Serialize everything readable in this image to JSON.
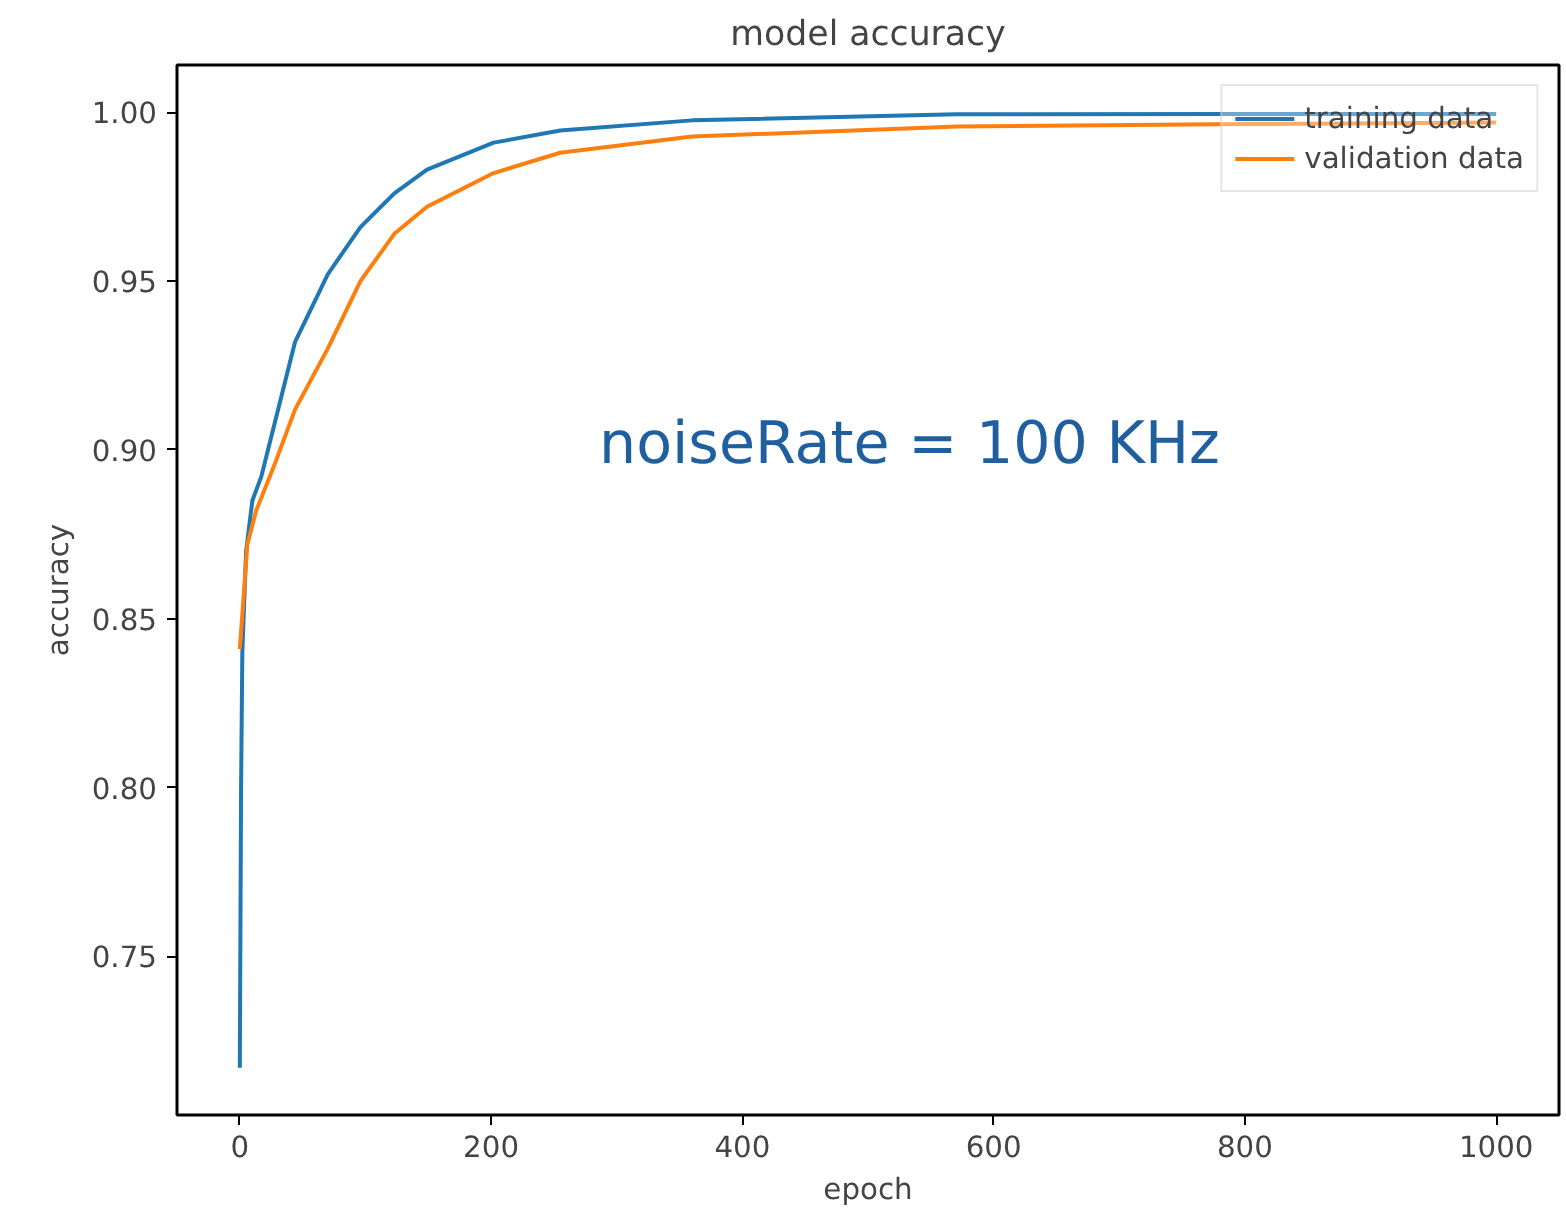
{
  "chart_data": {
    "type": "line",
    "title": "model accuracy",
    "xlabel": "epoch",
    "ylabel": "accuracy",
    "xlim": [
      -50,
      1050
    ],
    "ylim": [
      0.703,
      1.014
    ],
    "xticks": [
      0,
      200,
      400,
      600,
      800,
      1000
    ],
    "yticks": [
      {
        "value": 0.75,
        "label": "0.75"
      },
      {
        "value": 0.8,
        "label": "0.80"
      },
      {
        "value": 0.85,
        "label": "0.85"
      },
      {
        "value": 0.9,
        "label": "0.90"
      },
      {
        "value": 0.95,
        "label": "0.95"
      },
      {
        "value": 1.0,
        "label": "1.00"
      }
    ],
    "grid": false,
    "legend": "top right",
    "annotations": [
      "noiseRate = 100 KHz"
    ],
    "series": [
      {
        "name": "training data",
        "color": "#1f77b4",
        "x": [
          0,
          1,
          2,
          5,
          10,
          17,
          44,
          70,
          96,
          123,
          149,
          202,
          255,
          360,
          571,
          800,
          1000
        ],
        "values": [
          0.717,
          0.8,
          0.84,
          0.87,
          0.885,
          0.892,
          0.932,
          0.952,
          0.966,
          0.976,
          0.983,
          0.991,
          0.9946,
          0.9976,
          0.9994,
          0.9995,
          0.9995
        ]
      },
      {
        "name": "validation data",
        "color": "#ff7f0e",
        "x": [
          0,
          6,
          13,
          28,
          44,
          70,
          96,
          123,
          149,
          202,
          255,
          360,
          571,
          800,
          1000
        ],
        "values": [
          0.841,
          0.872,
          0.882,
          0.896,
          0.912,
          0.93,
          0.95,
          0.964,
          0.972,
          0.982,
          0.988,
          0.9928,
          0.9958,
          0.9965,
          0.997
        ]
      }
    ]
  }
}
